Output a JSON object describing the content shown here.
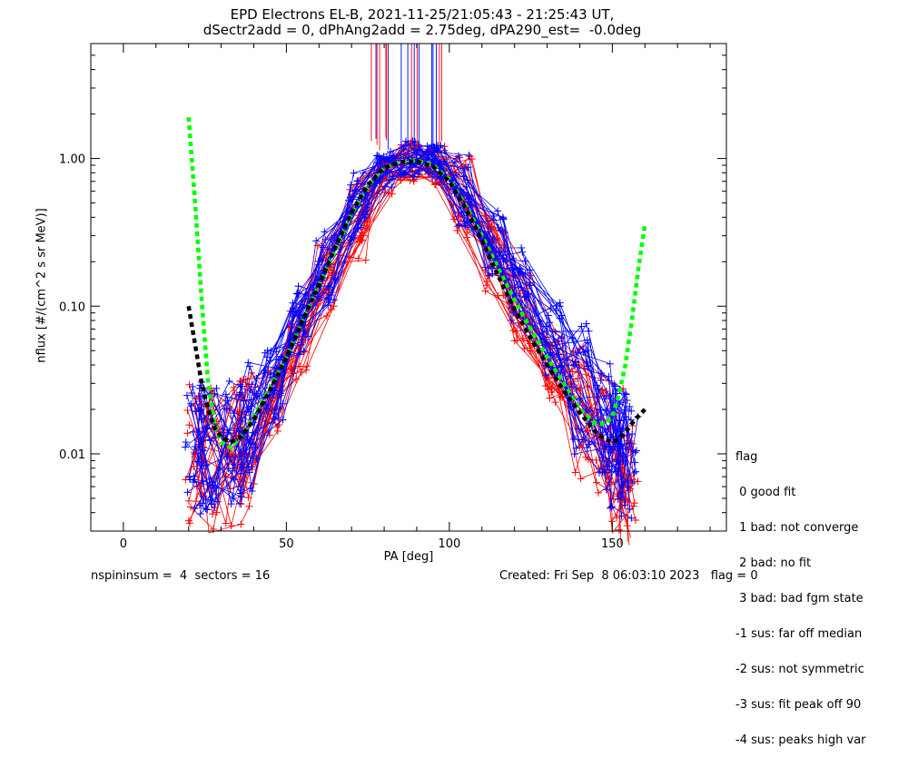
{
  "title_line1": "EPD Electrons EL-B, 2021-11-25/21:05:43 - 21:25:43 UT,",
  "title_line2": "dSectr2add = 0, dPhAng2add = 2.75deg, dPA290_est=  -0.0deg",
  "footer_left": "nspininsum =  4  sectors = 16",
  "footer_right": "Created: Fri Sep  8 06:03:10 2023   flag = 0",
  "flag_legend": [
    "flag",
    " 0 good fit",
    " 1 bad: not converge",
    " 2 bad: no fit",
    " 3 bad: bad fgm state",
    "-1 sus: far off median",
    "-2 sus: not symmetric",
    "-3 sus: fit peak off 90",
    "-4 sus: peaks high var"
  ],
  "colors": {
    "blue": "#0000ff",
    "red": "#ff0000",
    "green_fit": "#00ff00",
    "black_fit": "#000000"
  },
  "chart_data": {
    "type": "line",
    "title": "EPD Electrons EL-B, 2021-11-25/21:05:43 - 21:25:43 UT, dSectr2add = 0, dPhAng2add = 2.75deg, dPA290_est=  -0.0deg",
    "xlabel": "PA [deg]",
    "ylabel": "nflux [#/(cm^2 s sr MeV)]",
    "xlim": [
      -10,
      185
    ],
    "ylim": [
      0.003,
      6
    ],
    "yscale": "log",
    "xticks": [
      0,
      50,
      100,
      150
    ],
    "xtick_labels": [
      "0",
      "50",
      "100",
      "150"
    ],
    "yticks": [
      0.01,
      0.1,
      1.0
    ],
    "ytick_labels": [
      "0.01",
      "0.10",
      "1.00"
    ],
    "grid": false,
    "legend_position": "right-bottom",
    "series": [
      {
        "color": "green",
        "style": "dashed",
        "x": [
          20,
          22,
          24,
          26,
          28,
          30,
          33,
          36,
          40,
          45,
          50,
          55,
          60,
          65,
          70,
          75,
          80,
          85,
          90,
          95,
          100,
          105,
          110,
          115,
          120,
          125,
          130,
          135,
          140,
          145,
          148,
          150,
          152,
          154,
          156,
          158,
          160
        ],
        "y": [
          1.9,
          0.5,
          0.11,
          0.03,
          0.016,
          0.012,
          0.011,
          0.013,
          0.018,
          0.028,
          0.045,
          0.08,
          0.14,
          0.24,
          0.42,
          0.65,
          0.86,
          0.95,
          0.97,
          0.9,
          0.72,
          0.48,
          0.3,
          0.18,
          0.11,
          0.07,
          0.045,
          0.03,
          0.02,
          0.016,
          0.016,
          0.018,
          0.025,
          0.04,
          0.08,
          0.18,
          0.36
        ]
      },
      {
        "color": "black",
        "style": "dashed",
        "x": [
          20,
          22,
          24,
          26,
          28,
          30,
          33,
          36,
          40,
          45,
          50,
          55,
          60,
          65,
          70,
          75,
          80,
          85,
          90,
          95,
          100,
          105,
          110,
          115,
          120,
          125,
          130,
          135,
          140,
          145,
          148,
          150,
          152,
          154,
          156,
          158,
          160
        ],
        "y": [
          0.1,
          0.055,
          0.03,
          0.02,
          0.015,
          0.013,
          0.012,
          0.013,
          0.017,
          0.027,
          0.045,
          0.08,
          0.14,
          0.25,
          0.43,
          0.66,
          0.86,
          0.95,
          0.96,
          0.88,
          0.7,
          0.46,
          0.28,
          0.16,
          0.095,
          0.06,
          0.04,
          0.027,
          0.019,
          0.014,
          0.0125,
          0.012,
          0.0125,
          0.014,
          0.016,
          0.018,
          0.02
        ]
      }
    ],
    "measured_samples_note": "",
    "measured_samples": {
      "sector_pa": [
        22,
        26,
        34,
        38,
        46,
        54,
        62,
        72,
        80,
        88,
        96,
        104,
        114,
        122,
        132,
        140,
        148,
        152,
        155
      ],
      "blue_median_flux": [
        0.012,
        0.011,
        0.012,
        0.015,
        0.03,
        0.08,
        0.18,
        0.45,
        0.85,
        1.0,
        0.95,
        0.62,
        0.28,
        0.14,
        0.06,
        0.028,
        0.016,
        0.012,
        0.01
      ],
      "red_median_flux": [
        0.01,
        0.009,
        0.01,
        0.013,
        0.025,
        0.06,
        0.14,
        0.38,
        0.75,
        0.95,
        0.9,
        0.55,
        0.22,
        0.09,
        0.04,
        0.02,
        0.012,
        0.009,
        0.007
      ]
    }
  }
}
